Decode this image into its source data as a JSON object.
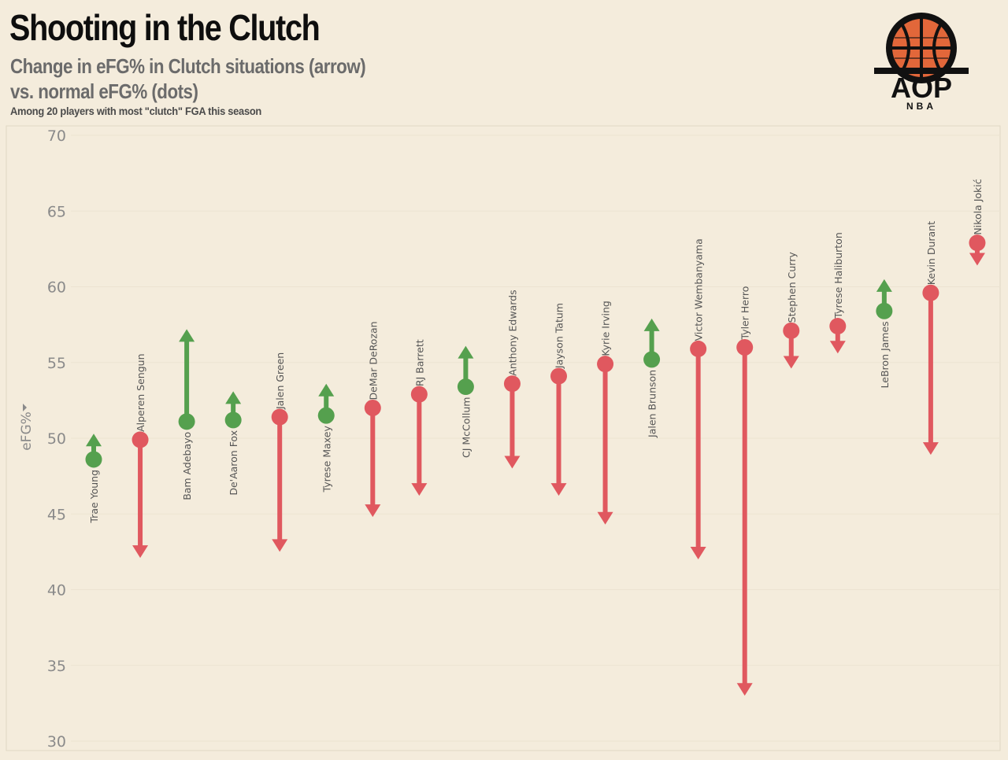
{
  "header": {
    "title": "Shooting in the Clutch",
    "subtitle_line1": "Change in eFG% in Clutch situations (arrow)",
    "subtitle_line2": "vs. normal eFG% (dots)",
    "note": "Among 20 players with most \"clutch\" FGA this season"
  },
  "logo": {
    "text": "AOP",
    "subtext": "NBA",
    "icon": "basketball-icon"
  },
  "colors": {
    "background": "#f4ecdc",
    "increase": "#55a04e",
    "decrease": "#e0585f",
    "axis_text": "#8a8a8a"
  },
  "chart_data": {
    "type": "scatter",
    "ylabel": "eFG%",
    "ylim": [
      30,
      70
    ],
    "yticks": [
      30,
      35,
      40,
      45,
      50,
      55,
      60,
      65,
      70
    ],
    "grid": true,
    "players": [
      {
        "name": "Trae Young",
        "efg": 48.6,
        "clutch_efg": 50.3
      },
      {
        "name": "Alperen Sengun",
        "efg": 49.9,
        "clutch_efg": 42.1
      },
      {
        "name": "Bam Adebayo",
        "efg": 51.1,
        "clutch_efg": 57.2
      },
      {
        "name": "De'Aaron Fox",
        "efg": 51.2,
        "clutch_efg": 53.1
      },
      {
        "name": "Jalen Green",
        "efg": 51.4,
        "clutch_efg": 42.5
      },
      {
        "name": "Tyrese Maxey",
        "efg": 51.5,
        "clutch_efg": 53.6
      },
      {
        "name": "DeMar DeRozan",
        "efg": 52.0,
        "clutch_efg": 44.8
      },
      {
        "name": "RJ Barrett",
        "efg": 52.9,
        "clutch_efg": 46.2
      },
      {
        "name": "CJ McCollum",
        "efg": 53.4,
        "clutch_efg": 56.1
      },
      {
        "name": "Anthony Edwards",
        "efg": 53.6,
        "clutch_efg": 48.0
      },
      {
        "name": "Jayson Tatum",
        "efg": 54.1,
        "clutch_efg": 46.2
      },
      {
        "name": "Kyrie Irving",
        "efg": 54.9,
        "clutch_efg": 44.3
      },
      {
        "name": "Jalen Brunson",
        "efg": 55.2,
        "clutch_efg": 57.9
      },
      {
        "name": "Victor Wembanyama",
        "efg": 55.9,
        "clutch_efg": 42.0
      },
      {
        "name": "Tyler Herro",
        "efg": 56.0,
        "clutch_efg": 33.0
      },
      {
        "name": "Stephen Curry",
        "efg": 57.1,
        "clutch_efg": 54.6
      },
      {
        "name": "Tyrese Haliburton",
        "efg": 57.4,
        "clutch_efg": 55.6
      },
      {
        "name": "LeBron James",
        "efg": 58.4,
        "clutch_efg": 60.5
      },
      {
        "name": "Kevin Durant",
        "efg": 59.6,
        "clutch_efg": 48.9
      },
      {
        "name": "Nikola Jokić",
        "efg": 62.9,
        "clutch_efg": 61.4
      }
    ]
  }
}
